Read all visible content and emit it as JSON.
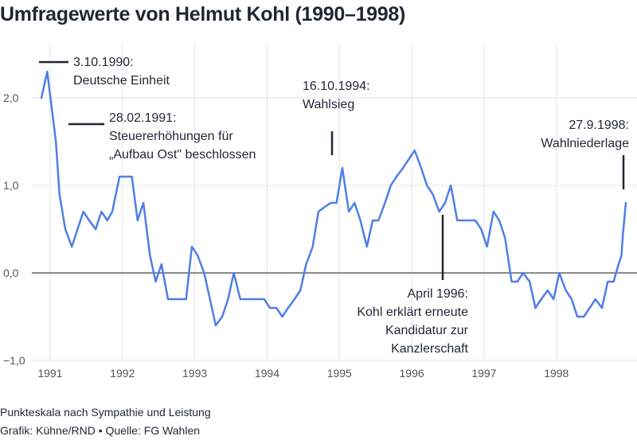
{
  "title": "Umfragewerte von Helmut Kohl (1990–1998)",
  "footer": {
    "scale_note": "Punkteskala nach Sympathie und Leistung",
    "source": "Grafik: Kühne/RND • Quelle: FG Wahlen"
  },
  "colors": {
    "line": "#4f7ee6",
    "text": "#1f2733",
    "grid": "#e4e4e4",
    "zero_line": "#444444",
    "tick_label": "#555555"
  },
  "chart_data": {
    "type": "line",
    "title": "Umfragewerte von Helmut Kohl (1990–1998)",
    "xlabel": "",
    "ylabel": "",
    "xlim": [
      1990.88,
      1998.96
    ],
    "ylim": [
      -1.0,
      2.45
    ],
    "grid": true,
    "x_ticks": [
      1991,
      1992,
      1993,
      1994,
      1995,
      1996,
      1997,
      1998
    ],
    "x_tick_labels": [
      "1991",
      "1992",
      "1993",
      "1994",
      "1995",
      "1996",
      "1997",
      "1998"
    ],
    "y_ticks": [
      2.0,
      1.0,
      0.0,
      -1.0
    ],
    "y_tick_labels": [
      "2,0",
      "1,0",
      "0,0",
      "−1,0"
    ],
    "series": [
      {
        "values": [
          [
            1990.88,
            2.0
          ],
          [
            1990.96,
            2.3
          ],
          [
            1991.08,
            1.5
          ],
          [
            1991.13,
            0.9
          ],
          [
            1991.21,
            0.5
          ],
          [
            1991.3,
            0.3
          ],
          [
            1991.38,
            0.5
          ],
          [
            1991.46,
            0.7
          ],
          [
            1991.54,
            0.6
          ],
          [
            1991.63,
            0.5
          ],
          [
            1991.71,
            0.7
          ],
          [
            1991.79,
            0.6
          ],
          [
            1991.86,
            0.7
          ],
          [
            1991.96,
            1.1
          ],
          [
            1992.04,
            1.1
          ],
          [
            1992.13,
            1.1
          ],
          [
            1992.21,
            0.6
          ],
          [
            1992.29,
            0.8
          ],
          [
            1992.38,
            0.2
          ],
          [
            1992.46,
            -0.1
          ],
          [
            1992.54,
            0.1
          ],
          [
            1992.63,
            -0.3
          ],
          [
            1992.71,
            -0.3
          ],
          [
            1992.79,
            -0.3
          ],
          [
            1992.88,
            -0.3
          ],
          [
            1992.96,
            0.3
          ],
          [
            1993.04,
            0.2
          ],
          [
            1993.13,
            0.0
          ],
          [
            1993.21,
            -0.3
          ],
          [
            1993.29,
            -0.6
          ],
          [
            1993.38,
            -0.5
          ],
          [
            1993.46,
            -0.3
          ],
          [
            1993.54,
            0.0
          ],
          [
            1993.63,
            -0.3
          ],
          [
            1993.71,
            -0.3
          ],
          [
            1993.79,
            -0.3
          ],
          [
            1993.88,
            -0.3
          ],
          [
            1993.96,
            -0.3
          ],
          [
            1994.04,
            -0.4
          ],
          [
            1994.13,
            -0.4
          ],
          [
            1994.21,
            -0.5
          ],
          [
            1994.29,
            -0.4
          ],
          [
            1994.38,
            -0.3
          ],
          [
            1994.46,
            -0.2
          ],
          [
            1994.54,
            0.1
          ],
          [
            1994.63,
            0.3
          ],
          [
            1994.71,
            0.7
          ],
          [
            1994.79,
            0.75
          ],
          [
            1994.88,
            0.8
          ],
          [
            1994.96,
            0.8
          ],
          [
            1995.04,
            1.2
          ],
          [
            1995.13,
            0.7
          ],
          [
            1995.21,
            0.8
          ],
          [
            1995.29,
            0.6
          ],
          [
            1995.38,
            0.3
          ],
          [
            1995.46,
            0.6
          ],
          [
            1995.54,
            0.6
          ],
          [
            1995.63,
            0.8
          ],
          [
            1995.71,
            1.0
          ],
          [
            1995.79,
            1.1
          ],
          [
            1995.88,
            1.2
          ],
          [
            1995.96,
            1.3
          ],
          [
            1996.04,
            1.4
          ],
          [
            1996.13,
            1.2
          ],
          [
            1996.21,
            1.0
          ],
          [
            1996.29,
            0.9
          ],
          [
            1996.38,
            0.7
          ],
          [
            1996.46,
            0.8
          ],
          [
            1996.54,
            1.0
          ],
          [
            1996.63,
            0.6
          ],
          [
            1996.71,
            0.6
          ],
          [
            1996.79,
            0.6
          ],
          [
            1996.88,
            0.6
          ],
          [
            1996.96,
            0.5
          ],
          [
            1997.04,
            0.3
          ],
          [
            1997.13,
            0.7
          ],
          [
            1997.21,
            0.6
          ],
          [
            1997.29,
            0.4
          ],
          [
            1997.38,
            -0.1
          ],
          [
            1997.46,
            -0.1
          ],
          [
            1997.54,
            0.0
          ],
          [
            1997.63,
            -0.1
          ],
          [
            1997.71,
            -0.4
          ],
          [
            1997.79,
            -0.3
          ],
          [
            1997.88,
            -0.2
          ],
          [
            1997.96,
            -0.3
          ],
          [
            1998.04,
            0.0
          ],
          [
            1998.13,
            -0.2
          ],
          [
            1998.21,
            -0.3
          ],
          [
            1998.29,
            -0.5
          ],
          [
            1998.38,
            -0.5
          ],
          [
            1998.46,
            -0.4
          ],
          [
            1998.54,
            -0.3
          ],
          [
            1998.63,
            -0.4
          ],
          [
            1998.71,
            -0.1
          ],
          [
            1998.79,
            -0.1
          ],
          [
            1998.86,
            0.1
          ],
          [
            1998.9,
            0.2
          ],
          [
            1998.92,
            0.45
          ],
          [
            1998.96,
            0.8
          ]
        ]
      }
    ],
    "annotations": [
      {
        "x": 1990.97,
        "y": 2.4,
        "lines": [
          "3.10.1990:",
          "Deutsche Einheit"
        ]
      },
      {
        "x": 1991.33,
        "y": 1.7,
        "lines": [
          "28.02.1991:",
          "Steuererhöhungen für",
          "„Aufbau Ost\" beschlossen"
        ]
      },
      {
        "x": 1995.04,
        "y": 1.35,
        "lines": [
          "16.10.1994:",
          "Wahlsieg"
        ]
      },
      {
        "x": 1996.33,
        "y": 0.65,
        "lines": [
          "April 1996:",
          "Kohl erklärt erneute",
          "Kandidatur zur",
          "Kanzlerschaft"
        ]
      },
      {
        "x": 1998.83,
        "y": 0.95,
        "lines": [
          "27.9.1998:",
          "Wahlniederlage"
        ]
      }
    ]
  }
}
